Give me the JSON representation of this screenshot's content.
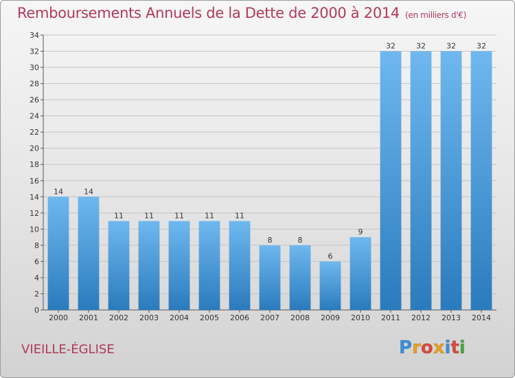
{
  "header": {
    "title": "Remboursements Annuels de la Dette de 2000 à 2014",
    "unit": "(en milliers d'€)"
  },
  "location": "VIEILLE-ÉGLISE",
  "logo": {
    "text": "Proxiti",
    "letters": [
      "P",
      "r",
      "o",
      "x",
      "i",
      "t",
      "i"
    ],
    "letter_colors": [
      "#3a8fd8",
      "#e8a020",
      "#d94a3a",
      "#e8a020",
      "#3a8fd8",
      "#d94a3a",
      "#46a845"
    ]
  },
  "colors": {
    "title": "#b03a58",
    "bar_top": "#6fb8ef",
    "bar_bottom": "#2a7bbd",
    "gridline": "#c4c4c4"
  },
  "chart_data": {
    "type": "bar",
    "title": "Remboursements Annuels de la Dette de 2000 à 2014",
    "subtitle": "(en milliers d'€)",
    "xlabel": "",
    "ylabel": "",
    "categories": [
      "2000",
      "2001",
      "2002",
      "2003",
      "2004",
      "2005",
      "2006",
      "2007",
      "2008",
      "2009",
      "2010",
      "2011",
      "2012",
      "2013",
      "2014"
    ],
    "values": [
      14,
      14,
      11,
      11,
      11,
      11,
      11,
      8,
      8,
      6,
      9,
      32,
      32,
      32,
      32
    ],
    "ylim": [
      0,
      34
    ],
    "yticks": [
      0,
      2,
      4,
      6,
      8,
      10,
      12,
      14,
      16,
      18,
      20,
      22,
      24,
      26,
      28,
      30,
      32,
      34
    ],
    "grid": true,
    "legend": "none"
  }
}
